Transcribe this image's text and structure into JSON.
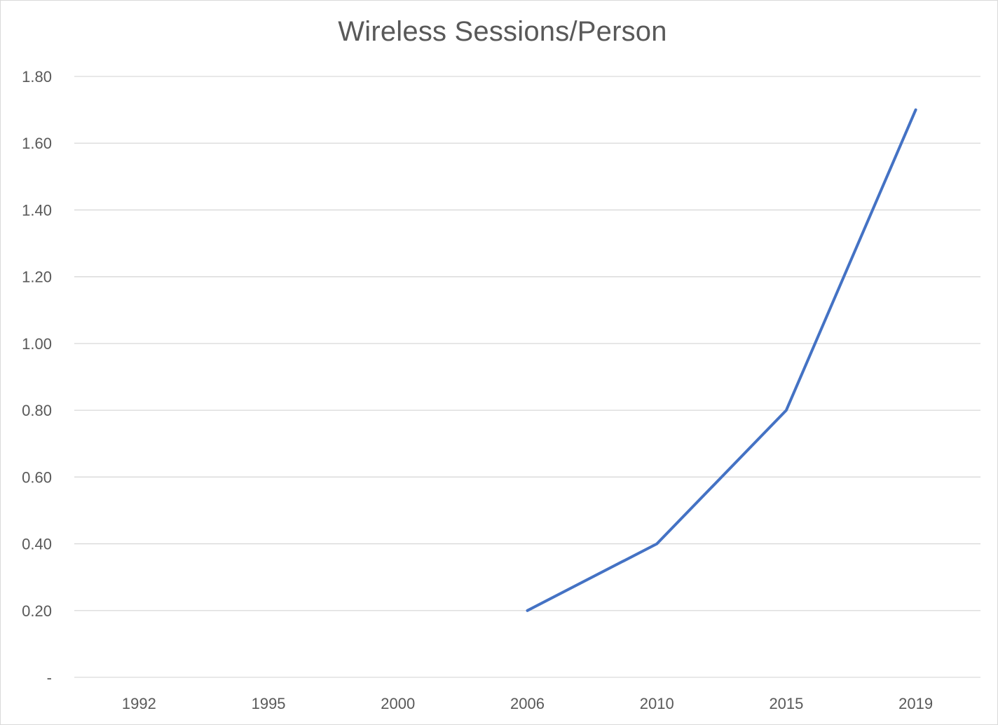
{
  "chart_data": {
    "type": "line",
    "title": "Wireless Sessions/Person",
    "xlabel": "",
    "ylabel": "",
    "categories": [
      "1992",
      "1995",
      "2000",
      "2006",
      "2010",
      "2015",
      "2019"
    ],
    "series": [
      {
        "color": "#4472c4",
        "values": [
          null,
          null,
          null,
          0.2,
          0.4,
          0.8,
          1.7
        ]
      }
    ],
    "ylim": [
      0,
      1.8
    ],
    "yticks": [
      0,
      0.2,
      0.4,
      0.6,
      0.8,
      1.0,
      1.2,
      1.4,
      1.6,
      1.8
    ],
    "ytick_labels": [
      "-",
      "0.20",
      "0.40",
      "0.60",
      "0.80",
      "1.00",
      "1.20",
      "1.40",
      "1.60",
      "1.80"
    ],
    "grid": true,
    "legend": "none"
  }
}
